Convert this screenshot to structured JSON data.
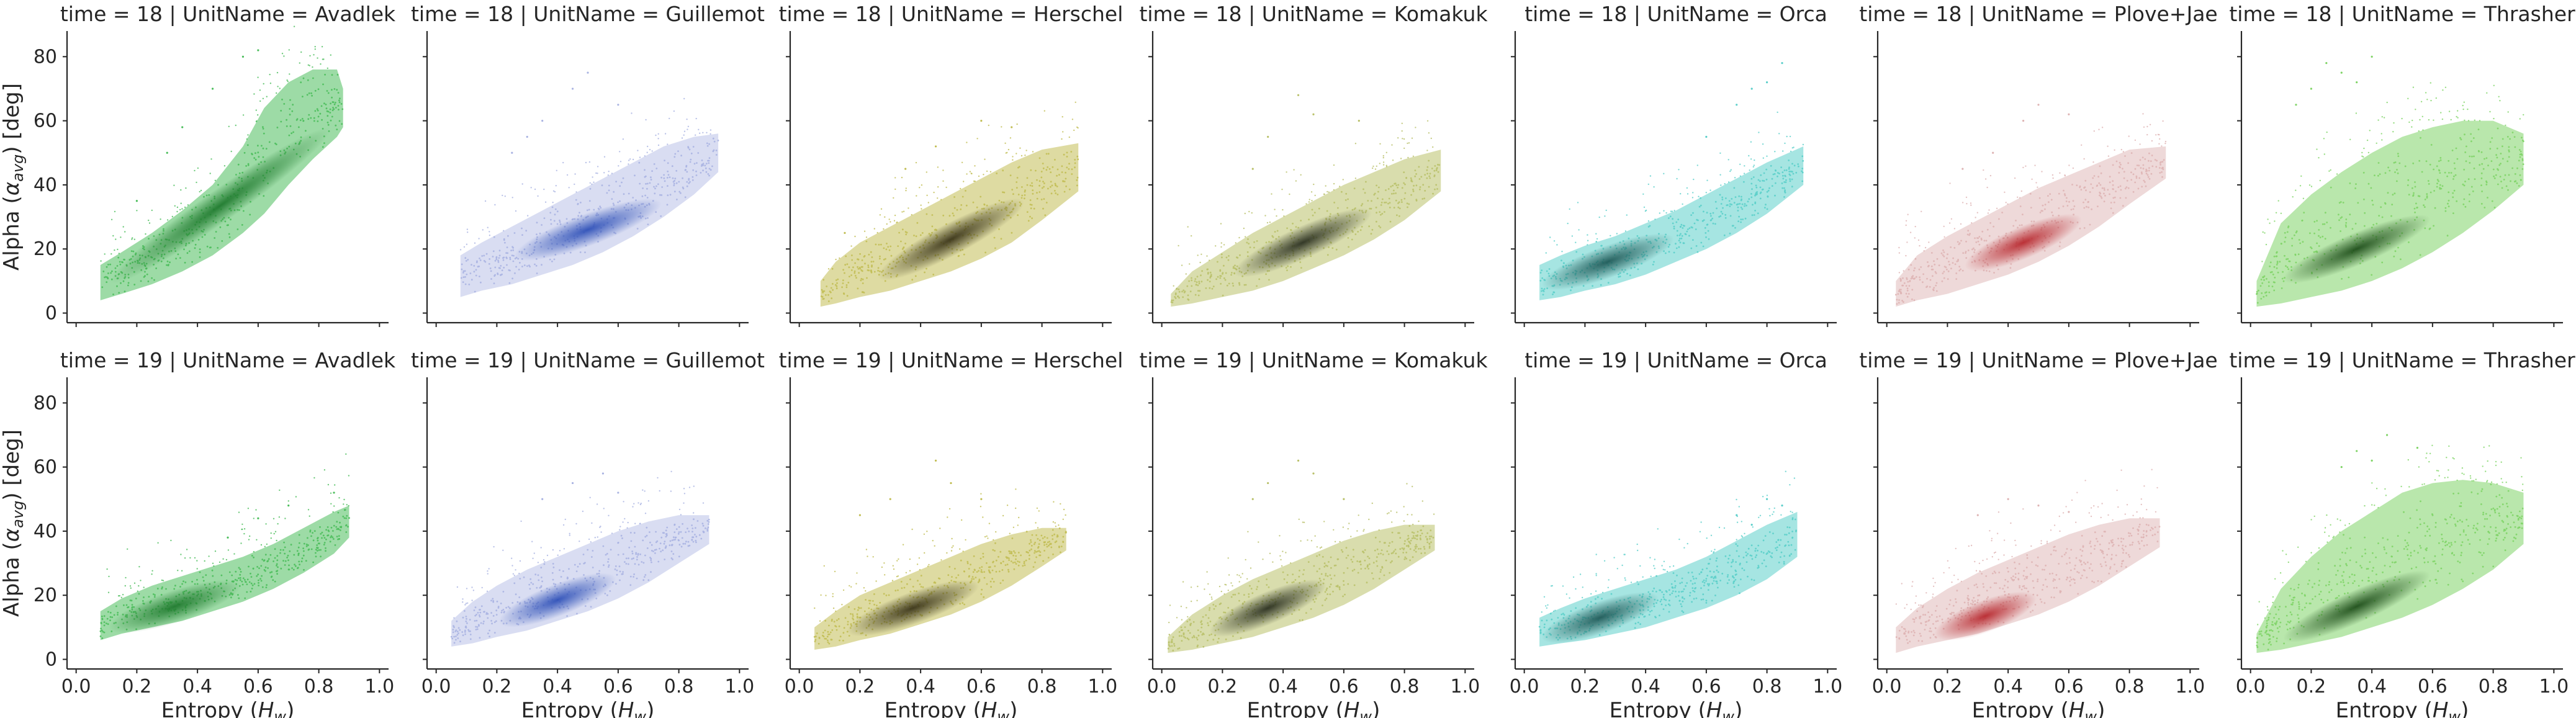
{
  "figure": {
    "type": "facet-grid-density-scatter",
    "xlabel": "Entropy (",
    "xlabel_var": "H",
    "xlabel_sub": "w",
    "xlabel_close": ")",
    "ylabel": "Alpha (",
    "ylabel_var": "α",
    "ylabel_sub": "avg",
    "ylabel_close": ") [deg]",
    "xticks": [
      "0.0",
      "0.2",
      "0.4",
      "0.6",
      "0.8",
      "1.0"
    ],
    "xtick_values": [
      0.0,
      0.2,
      0.4,
      0.6,
      0.8,
      1.0
    ],
    "yticks": [
      "0",
      "20",
      "40",
      "60",
      "80"
    ],
    "ytick_values": [
      0,
      20,
      40,
      60,
      80
    ],
    "xlim": [
      -0.03,
      1.03
    ],
    "ylim": [
      -3,
      88
    ],
    "grid": false
  },
  "chart_data": [
    {
      "type": "scatter",
      "title": "time = 18 | UnitName = Avadlek",
      "time": 18,
      "unit": "Avadlek",
      "color": "#4cbe5c",
      "dark": "#1f7a2e",
      "alpha": 0.55,
      "x": [
        0.08,
        0.15,
        0.25,
        0.35,
        0.45,
        0.55,
        0.62,
        0.7,
        0.78,
        0.86,
        0.88
      ],
      "y_low": [
        4,
        6,
        9,
        13,
        18,
        25,
        31,
        40,
        48,
        55,
        58
      ],
      "y_high": [
        15,
        19,
        25,
        32,
        40,
        52,
        64,
        72,
        76,
        76,
        70
      ],
      "core": {
        "x": [
          0.15,
          0.8
        ],
        "y": [
          12,
          55
        ]
      },
      "outliers": [
        [
          0.35,
          58
        ],
        [
          0.45,
          70
        ],
        [
          0.55,
          80
        ],
        [
          0.3,
          50
        ],
        [
          0.6,
          82
        ],
        [
          0.2,
          35
        ]
      ]
    },
    {
      "type": "scatter",
      "title": "time = 18 | UnitName = Guillemot",
      "time": 18,
      "unit": "Guillemot",
      "color": "#aab4e2",
      "dark": "#2e50b8",
      "alpha": 0.45,
      "x": [
        0.08,
        0.15,
        0.25,
        0.35,
        0.45,
        0.55,
        0.65,
        0.75,
        0.85,
        0.93
      ],
      "y_low": [
        5,
        7,
        9,
        12,
        15,
        19,
        24,
        30,
        37,
        44
      ],
      "y_high": [
        18,
        22,
        27,
        32,
        37,
        42,
        47,
        52,
        55,
        56
      ],
      "core": {
        "x": [
          0.3,
          0.7
        ],
        "y": [
          19,
          33
        ]
      },
      "outliers": [
        [
          0.35,
          60
        ],
        [
          0.45,
          70
        ],
        [
          0.6,
          65
        ],
        [
          0.3,
          55
        ],
        [
          0.5,
          75
        ],
        [
          0.25,
          50
        ]
      ]
    },
    {
      "type": "scatter",
      "title": "time = 18 | UnitName = Herschel",
      "time": 18,
      "unit": "Herschel",
      "color": "#c2be55",
      "dark": "#3a3418",
      "alpha": 0.55,
      "x": [
        0.07,
        0.12,
        0.2,
        0.3,
        0.4,
        0.5,
        0.6,
        0.7,
        0.8,
        0.92
      ],
      "y_low": [
        2,
        3,
        5,
        7,
        10,
        13,
        17,
        22,
        29,
        38
      ],
      "y_high": [
        10,
        16,
        22,
        27,
        32,
        37,
        42,
        47,
        51,
        53
      ],
      "core": {
        "x": [
          0.3,
          0.7
        ],
        "y": [
          13,
          33
        ]
      },
      "outliers": [
        [
          0.15,
          25
        ],
        [
          0.6,
          60
        ],
        [
          0.35,
          45
        ],
        [
          0.7,
          58
        ],
        [
          0.45,
          52
        ]
      ]
    },
    {
      "type": "scatter",
      "title": "time = 18 | UnitName = Komakuk",
      "time": 18,
      "unit": "Komakuk",
      "color": "#b9c16a",
      "dark": "#2b3020",
      "alpha": 0.55,
      "x": [
        0.03,
        0.1,
        0.2,
        0.3,
        0.4,
        0.5,
        0.6,
        0.7,
        0.8,
        0.92
      ],
      "y_low": [
        2,
        3,
        5,
        7,
        10,
        14,
        18,
        23,
        29,
        38
      ],
      "y_high": [
        6,
        13,
        19,
        25,
        30,
        35,
        40,
        44,
        48,
        51
      ],
      "core": {
        "x": [
          0.28,
          0.65
        ],
        "y": [
          14,
          30
        ]
      },
      "outliers": [
        [
          0.35,
          55
        ],
        [
          0.5,
          62
        ],
        [
          0.65,
          60
        ],
        [
          0.3,
          45
        ],
        [
          0.45,
          68
        ]
      ]
    },
    {
      "type": "scatter",
      "title": "time = 18 | UnitName = Orca",
      "time": 18,
      "unit": "Orca",
      "color": "#5ccfca",
      "dark": "#1f5a58",
      "alpha": 0.55,
      "x": [
        0.05,
        0.12,
        0.2,
        0.3,
        0.4,
        0.5,
        0.6,
        0.7,
        0.8,
        0.92
      ],
      "y_low": [
        4,
        5,
        7,
        9,
        12,
        16,
        20,
        25,
        31,
        40
      ],
      "y_high": [
        15,
        18,
        21,
        24,
        28,
        32,
        37,
        42,
        47,
        52
      ],
      "core": {
        "x": [
          0.1,
          0.45
        ],
        "y": [
          10,
          22
        ]
      },
      "outliers": [
        [
          0.7,
          65
        ],
        [
          0.8,
          72
        ],
        [
          0.85,
          78
        ],
        [
          0.6,
          55
        ],
        [
          0.75,
          70
        ]
      ]
    },
    {
      "type": "scatter",
      "title": "time = 18 | UnitName = Plove+Jae",
      "time": 18,
      "unit": "Plove+Jae",
      "color": "#deb4b4",
      "dark": "#b8282e",
      "alpha": 0.5,
      "x": [
        0.03,
        0.1,
        0.2,
        0.3,
        0.4,
        0.5,
        0.6,
        0.7,
        0.8,
        0.92
      ],
      "y_low": [
        2,
        4,
        6,
        9,
        12,
        16,
        21,
        27,
        34,
        42
      ],
      "y_high": [
        10,
        18,
        24,
        29,
        34,
        39,
        43,
        47,
        51,
        52
      ],
      "core": {
        "x": [
          0.3,
          0.6
        ],
        "y": [
          16,
          28
        ]
      },
      "outliers": [
        [
          0.25,
          45
        ],
        [
          0.45,
          60
        ],
        [
          0.6,
          62
        ],
        [
          0.35,
          50
        ],
        [
          0.5,
          65
        ]
      ]
    },
    {
      "type": "scatter",
      "title": "time = 18 | UnitName = Thrasher",
      "time": 18,
      "unit": "Thrasher",
      "color": "#80d467",
      "dark": "#1e4e1a",
      "alpha": 0.55,
      "x": [
        0.02,
        0.1,
        0.2,
        0.3,
        0.4,
        0.5,
        0.6,
        0.7,
        0.8,
        0.9
      ],
      "y_low": [
        2,
        3,
        5,
        7,
        10,
        14,
        19,
        25,
        32,
        40
      ],
      "y_high": [
        10,
        28,
        37,
        44,
        50,
        55,
        58,
        60,
        60,
        56
      ],
      "core": {
        "x": [
          0.15,
          0.55
        ],
        "y": [
          12,
          28
        ]
      },
      "outliers": [
        [
          0.2,
          70
        ],
        [
          0.25,
          78
        ],
        [
          0.3,
          75
        ],
        [
          0.35,
          72
        ],
        [
          0.4,
          80
        ],
        [
          0.15,
          65
        ]
      ]
    },
    {
      "type": "scatter",
      "title": "time = 19 | UnitName = Avadlek",
      "time": 19,
      "unit": "Avadlek",
      "color": "#4cbe5c",
      "dark": "#1f7a2e",
      "alpha": 0.55,
      "x": [
        0.08,
        0.15,
        0.25,
        0.35,
        0.45,
        0.55,
        0.65,
        0.75,
        0.85,
        0.9
      ],
      "y_low": [
        6,
        8,
        10,
        12,
        15,
        18,
        22,
        27,
        33,
        38
      ],
      "y_high": [
        15,
        19,
        23,
        26,
        29,
        32,
        36,
        41,
        46,
        48
      ],
      "core": {
        "x": [
          0.15,
          0.5
        ],
        "y": [
          11,
          22
        ]
      },
      "outliers": [
        [
          0.7,
          48
        ],
        [
          0.85,
          52
        ],
        [
          0.5,
          38
        ],
        [
          0.6,
          44
        ]
      ]
    },
    {
      "type": "scatter",
      "title": "time = 19 | UnitName = Guillemot",
      "time": 19,
      "unit": "Guillemot",
      "color": "#aab4e2",
      "dark": "#2e50b8",
      "alpha": 0.45,
      "x": [
        0.05,
        0.12,
        0.2,
        0.3,
        0.4,
        0.5,
        0.6,
        0.7,
        0.8,
        0.9
      ],
      "y_low": [
        4,
        5,
        7,
        9,
        12,
        15,
        19,
        24,
        30,
        36
      ],
      "y_high": [
        12,
        18,
        23,
        28,
        32,
        36,
        40,
        43,
        45,
        45
      ],
      "core": {
        "x": [
          0.25,
          0.55
        ],
        "y": [
          13,
          24
        ]
      },
      "outliers": [
        [
          0.45,
          55
        ],
        [
          0.55,
          58
        ],
        [
          0.35,
          50
        ],
        [
          0.6,
          52
        ]
      ]
    },
    {
      "type": "scatter",
      "title": "time = 19 | UnitName = Herschel",
      "time": 19,
      "unit": "Herschel",
      "color": "#c2be55",
      "dark": "#3a3418",
      "alpha": 0.55,
      "x": [
        0.05,
        0.12,
        0.2,
        0.3,
        0.4,
        0.5,
        0.6,
        0.7,
        0.8,
        0.88
      ],
      "y_low": [
        3,
        4,
        6,
        8,
        11,
        14,
        18,
        23,
        29,
        34
      ],
      "y_high": [
        10,
        15,
        20,
        24,
        28,
        32,
        36,
        39,
        41,
        41
      ],
      "core": {
        "x": [
          0.2,
          0.55
        ],
        "y": [
          10,
          22
        ]
      },
      "outliers": [
        [
          0.3,
          50
        ],
        [
          0.5,
          55
        ],
        [
          0.6,
          50
        ],
        [
          0.2,
          45
        ],
        [
          0.45,
          62
        ]
      ]
    },
    {
      "type": "scatter",
      "title": "time = 19 | UnitName = Komakuk",
      "time": 19,
      "unit": "Komakuk",
      "color": "#b9c16a",
      "dark": "#2b3020",
      "alpha": 0.55,
      "x": [
        0.02,
        0.1,
        0.2,
        0.3,
        0.4,
        0.5,
        0.6,
        0.7,
        0.8,
        0.9
      ],
      "y_low": [
        2,
        3,
        5,
        7,
        10,
        13,
        17,
        22,
        28,
        34
      ],
      "y_high": [
        7,
        14,
        20,
        25,
        29,
        33,
        37,
        40,
        42,
        42
      ],
      "core": {
        "x": [
          0.2,
          0.5
        ],
        "y": [
          10,
          22
        ]
      },
      "outliers": [
        [
          0.35,
          55
        ],
        [
          0.45,
          62
        ],
        [
          0.5,
          58
        ],
        [
          0.3,
          50
        ],
        [
          0.6,
          50
        ]
      ]
    },
    {
      "type": "scatter",
      "title": "time = 19 | UnitName = Orca",
      "time": 19,
      "unit": "Orca",
      "color": "#5ccfca",
      "dark": "#1f5a58",
      "alpha": 0.55,
      "x": [
        0.05,
        0.12,
        0.2,
        0.3,
        0.4,
        0.5,
        0.6,
        0.7,
        0.8,
        0.9
      ],
      "y_low": [
        4,
        5,
        6,
        8,
        10,
        13,
        16,
        20,
        25,
        32
      ],
      "y_high": [
        13,
        16,
        19,
        22,
        25,
        28,
        32,
        37,
        42,
        46
      ],
      "core": {
        "x": [
          0.1,
          0.4
        ],
        "y": [
          8,
          18
        ]
      },
      "outliers": [
        [
          0.7,
          45
        ],
        [
          0.8,
          50
        ],
        [
          0.85,
          48
        ],
        [
          0.75,
          42
        ]
      ]
    },
    {
      "type": "scatter",
      "title": "time = 19 | UnitName = Plove+Jae",
      "time": 19,
      "unit": "Plove+Jae",
      "color": "#deb4b4",
      "dark": "#b8282e",
      "alpha": 0.5,
      "x": [
        0.03,
        0.1,
        0.2,
        0.3,
        0.4,
        0.5,
        0.6,
        0.7,
        0.8,
        0.9
      ],
      "y_low": [
        2,
        4,
        6,
        8,
        11,
        14,
        18,
        23,
        29,
        35
      ],
      "y_high": [
        10,
        16,
        22,
        27,
        31,
        35,
        39,
        42,
        44,
        44
      ],
      "core": {
        "x": [
          0.2,
          0.45
        ],
        "y": [
          9,
          18
        ]
      },
      "outliers": [
        [
          0.3,
          45
        ],
        [
          0.4,
          50
        ],
        [
          0.5,
          48
        ],
        [
          0.6,
          46
        ]
      ]
    },
    {
      "type": "scatter",
      "title": "time = 19 | UnitName = Thrasher",
      "time": 19,
      "unit": "Thrasher",
      "color": "#80d467",
      "dark": "#1e4e1a",
      "alpha": 0.55,
      "x": [
        0.02,
        0.1,
        0.2,
        0.3,
        0.4,
        0.5,
        0.6,
        0.7,
        0.8,
        0.9
      ],
      "y_low": [
        2,
        3,
        5,
        7,
        10,
        13,
        17,
        22,
        28,
        36
      ],
      "y_high": [
        8,
        22,
        32,
        40,
        46,
        52,
        55,
        56,
        55,
        52
      ],
      "core": {
        "x": [
          0.15,
          0.55
        ],
        "y": [
          8,
          25
        ]
      },
      "outliers": [
        [
          0.35,
          65
        ],
        [
          0.45,
          70
        ],
        [
          0.4,
          62
        ],
        [
          0.55,
          66
        ],
        [
          0.3,
          60
        ]
      ]
    }
  ]
}
